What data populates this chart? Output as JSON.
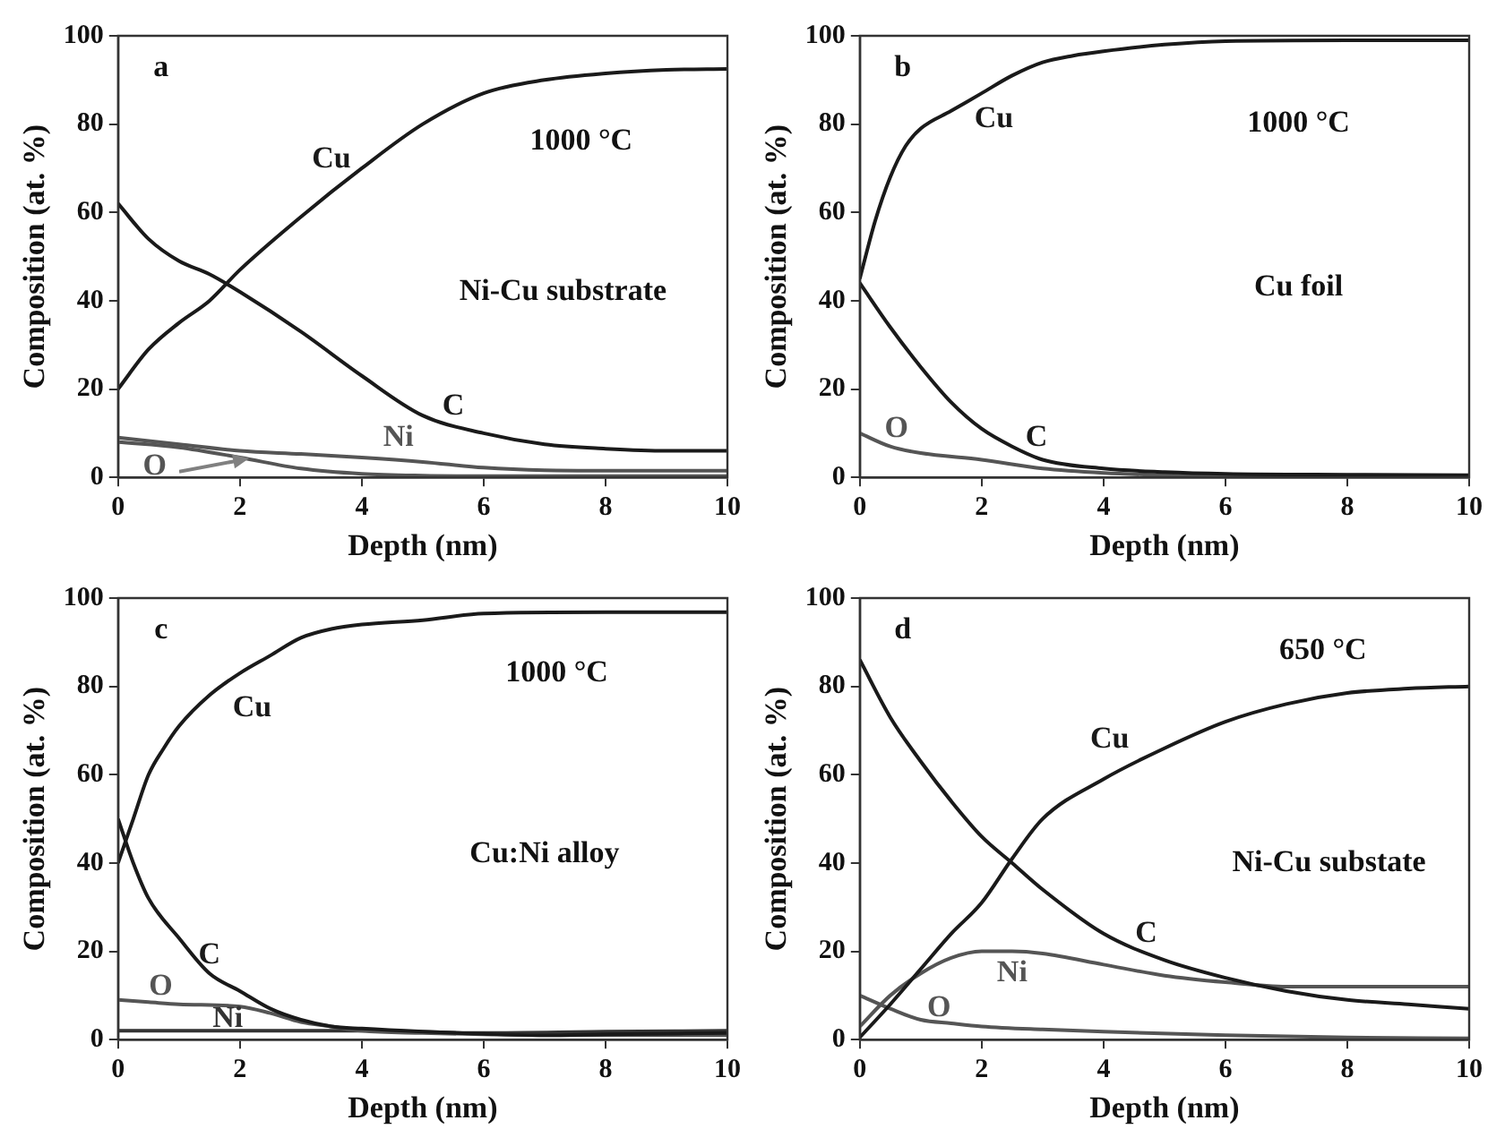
{
  "chart_data": [
    {
      "type": "line",
      "title": "a",
      "xlabel": "Depth (nm)",
      "ylabel": "Composition (at. %)",
      "xlim": [
        0,
        10
      ],
      "xticks": [
        0,
        2,
        4,
        6,
        8,
        10
      ],
      "ylim": [
        0,
        100
      ],
      "yticks": [
        0,
        20,
        40,
        60,
        80,
        100
      ],
      "grid": false,
      "legend": false,
      "annotations": [
        "1000 °C",
        "Ni-Cu substrate"
      ],
      "series": [
        {
          "name": "Cu",
          "color": "#1a1a1a",
          "x": [
            0,
            0.5,
            1,
            1.5,
            2,
            3,
            4,
            5,
            6,
            7,
            8,
            9,
            10
          ],
          "values": [
            20,
            29,
            35,
            40,
            47,
            59,
            70,
            80,
            87,
            90,
            91.5,
            92.3,
            92.5
          ]
        },
        {
          "name": "C",
          "color": "#1a1a1a",
          "x": [
            0,
            0.5,
            1,
            1.5,
            2,
            3,
            4,
            5,
            6,
            7,
            8,
            9,
            10
          ],
          "values": [
            62,
            54,
            49,
            46,
            42,
            33,
            23,
            14,
            10,
            7.5,
            6.5,
            6,
            6
          ]
        },
        {
          "name": "Ni",
          "color": "#555555",
          "x": [
            0,
            1,
            2,
            3,
            4,
            5,
            6,
            7,
            8,
            10
          ],
          "values": [
            9,
            7.5,
            6,
            5.3,
            4.5,
            3.5,
            2.2,
            1.6,
            1.5,
            1.5
          ]
        },
        {
          "name": "O",
          "color": "#555555",
          "x": [
            0,
            1,
            2,
            3,
            4,
            5,
            6,
            10
          ],
          "values": [
            8,
            6.8,
            4.5,
            2,
            0.8,
            0.4,
            0.3,
            0.3
          ]
        }
      ]
    },
    {
      "type": "line",
      "title": "b",
      "xlabel": "Depth (nm)",
      "ylabel": "Composition (at. %)",
      "xlim": [
        0,
        10
      ],
      "xticks": [
        0,
        2,
        4,
        6,
        8,
        10
      ],
      "ylim": [
        0,
        100
      ],
      "yticks": [
        0,
        20,
        40,
        60,
        80,
        100
      ],
      "grid": false,
      "legend": false,
      "annotations": [
        "1000 °C",
        "Cu foil"
      ],
      "series": [
        {
          "name": "Cu",
          "color": "#1a1a1a",
          "x": [
            0,
            0.25,
            0.5,
            0.75,
            1,
            1.5,
            2,
            2.5,
            3,
            3.5,
            4,
            5,
            6,
            8,
            10
          ],
          "values": [
            45,
            58,
            68,
            75,
            79,
            83,
            87,
            91,
            94,
            95.5,
            96.5,
            98,
            98.8,
            99,
            99
          ]
        },
        {
          "name": "C",
          "color": "#1a1a1a",
          "x": [
            0,
            0.5,
            1,
            1.5,
            2,
            2.5,
            3,
            4,
            5,
            6,
            8,
            10
          ],
          "values": [
            44,
            34,
            25,
            17,
            11,
            7,
            4,
            2,
            1.2,
            0.8,
            0.6,
            0.5
          ]
        },
        {
          "name": "O",
          "color": "#555555",
          "x": [
            0,
            0.5,
            1,
            2,
            3,
            4,
            5,
            6,
            10
          ],
          "values": [
            10,
            7,
            5.5,
            4,
            2,
            1,
            0.5,
            0.3,
            0.3
          ]
        }
      ]
    },
    {
      "type": "line",
      "title": "c",
      "xlabel": "Depth (nm)",
      "ylabel": "Composition (at. %)",
      "xlim": [
        0,
        10
      ],
      "xticks": [
        0,
        2,
        4,
        6,
        8,
        10
      ],
      "ylim": [
        0,
        100
      ],
      "yticks": [
        0,
        20,
        40,
        60,
        80,
        100
      ],
      "grid": false,
      "legend": false,
      "annotations": [
        "1000 °C",
        "Cu:Ni alloy"
      ],
      "series": [
        {
          "name": "Cu",
          "color": "#1a1a1a",
          "x": [
            0,
            0.25,
            0.5,
            0.75,
            1,
            1.5,
            2,
            2.5,
            3,
            3.5,
            4,
            5,
            6,
            8,
            10
          ],
          "values": [
            40,
            50,
            60,
            66,
            71,
            78,
            83,
            87,
            91,
            93,
            94,
            95,
            96.5,
            96.8,
            96.8
          ]
        },
        {
          "name": "C",
          "color": "#1a1a1a",
          "x": [
            0,
            0.25,
            0.5,
            1,
            1.5,
            2,
            2.5,
            3,
            3.5,
            4,
            5,
            6,
            7,
            8,
            10
          ],
          "values": [
            50,
            40,
            32,
            23,
            15,
            11,
            7,
            4.5,
            3,
            2.5,
            1.8,
            1.3,
            1,
            1.2,
            1.5
          ]
        },
        {
          "name": "O",
          "color": "#555555",
          "x": [
            0,
            0.5,
            1,
            2,
            2.5,
            3,
            3.5,
            4,
            5,
            6,
            7,
            8,
            10
          ],
          "values": [
            9,
            8.5,
            8,
            7.5,
            6,
            4,
            3,
            2,
            1.5,
            1.2,
            1,
            1,
            1
          ]
        },
        {
          "name": "Ni",
          "color": "#333333",
          "x": [
            0,
            2,
            4,
            6,
            8,
            10
          ],
          "values": [
            2,
            2,
            2,
            1.5,
            1.8,
            2
          ]
        }
      ]
    },
    {
      "type": "line",
      "title": "d",
      "xlabel": "Depth (nm)",
      "ylabel": "Composition (at. %)",
      "xlim": [
        0,
        10
      ],
      "xticks": [
        0,
        2,
        4,
        6,
        8,
        10
      ],
      "ylim": [
        0,
        100
      ],
      "yticks": [
        0,
        20,
        40,
        60,
        80,
        100
      ],
      "grid": false,
      "legend": false,
      "annotations": [
        "650 °C",
        "Ni-Cu substate"
      ],
      "series": [
        {
          "name": "Cu",
          "color": "#1a1a1a",
          "x": [
            0,
            0.5,
            1,
            1.5,
            2,
            2.5,
            3,
            4,
            5,
            6,
            7,
            8,
            9,
            10
          ],
          "values": [
            0.5,
            8,
            16,
            24,
            31,
            41,
            50,
            59,
            66,
            72,
            76,
            78.5,
            79.5,
            80
          ]
        },
        {
          "name": "C",
          "color": "#1a1a1a",
          "x": [
            0,
            0.5,
            1,
            1.5,
            2,
            2.5,
            3,
            4,
            5,
            6,
            7,
            8,
            9,
            10
          ],
          "values": [
            86,
            73,
            63,
            54,
            46,
            40,
            34,
            24,
            18,
            14,
            11,
            9,
            8,
            7
          ]
        },
        {
          "name": "Ni",
          "color": "#555555",
          "x": [
            0,
            0.5,
            1,
            1.5,
            2,
            2.5,
            3,
            4,
            5,
            6,
            7,
            8,
            9,
            10
          ],
          "values": [
            3,
            10,
            15,
            18.5,
            20,
            20,
            19.5,
            17,
            14.5,
            13,
            12,
            12,
            12,
            12
          ]
        },
        {
          "name": "O",
          "color": "#555555",
          "x": [
            0,
            0.5,
            1,
            1.5,
            2,
            3,
            4,
            6,
            8,
            10
          ],
          "values": [
            10,
            7,
            4.5,
            3.7,
            3,
            2.3,
            1.8,
            1,
            0.5,
            0.3
          ]
        }
      ]
    }
  ]
}
